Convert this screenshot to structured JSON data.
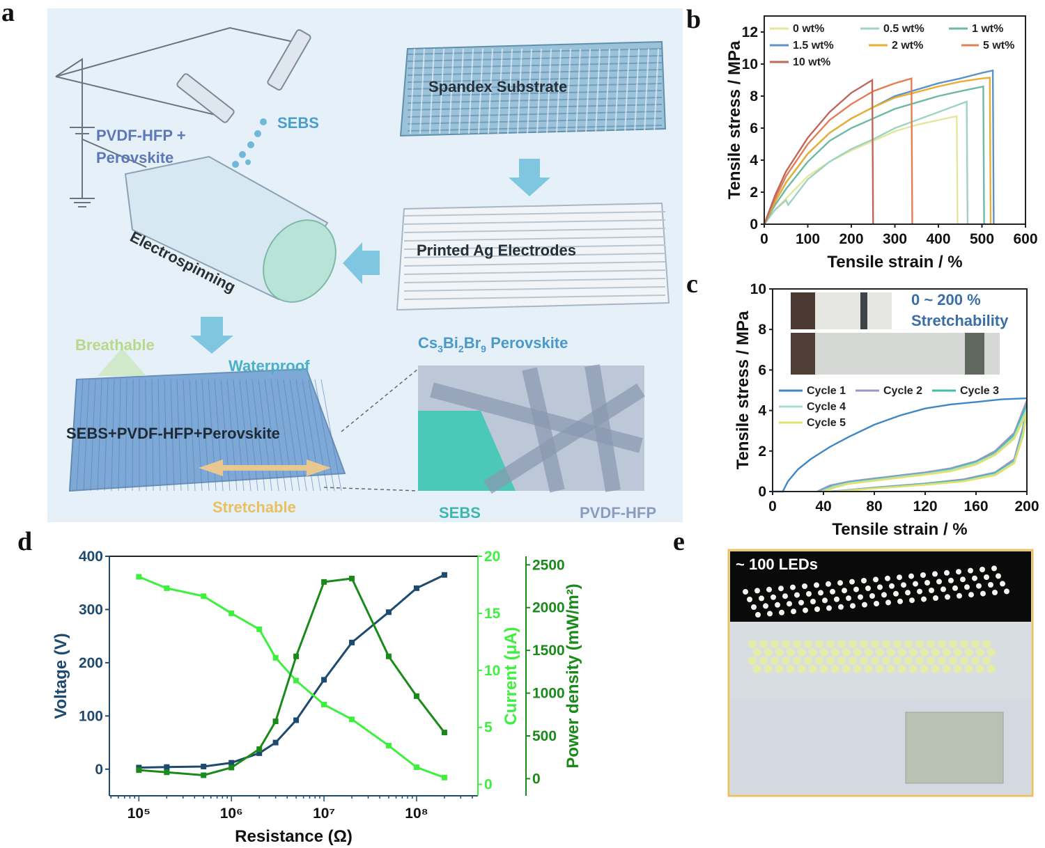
{
  "panel_labels": {
    "a": "a",
    "b": "b",
    "c": "c",
    "d": "d",
    "e": "e"
  },
  "panel_a": {
    "spandex": "Spandex Substrate",
    "electrodes": "Printed Ag Electrodes",
    "electrospinning": "Electrospinning",
    "sebs_top": "SEBS",
    "pvdf_perov_1": "PVDF-HFP +",
    "pvdf_perov_2": "Perovskite",
    "breathable": "Breathable",
    "waterproof": "Waterproof",
    "composite": "SEBS+PVDF-HFP+Perovskite",
    "stretchable": "Stretchable",
    "perovskite_main": "Cs",
    "perovskite_sub1": "3",
    "perovskite_mid1": "Bi",
    "perovskite_sub2": "2",
    "perovskite_mid2": "Br",
    "perovskite_sub3": "9",
    "perovskite_tail": " Perovskite",
    "sebs_inset": "SEBS",
    "pvdf_inset": "PVDF-HFP",
    "colors": {
      "bg": "#e6f0f8",
      "fabric": "#8fb8d4",
      "membrane": "#6f9fd0",
      "teal": "#3fb6b0",
      "accent": "#4aa0c8"
    }
  },
  "panel_e": {
    "caption": "~ 100 LEDs"
  },
  "chart_data": [
    {
      "panel": "b",
      "type": "line",
      "xlabel": "Tensile strain / %",
      "ylabel": "Tensile stress / MPa",
      "xlim": [
        0,
        600
      ],
      "ylim": [
        0,
        13
      ],
      "xticks": [
        0,
        100,
        200,
        300,
        400,
        500,
        600
      ],
      "yticks": [
        0,
        2,
        4,
        6,
        8,
        10,
        12
      ],
      "grid": false,
      "legend": "top",
      "series": [
        {
          "name": "0 wt%",
          "color": "#e4e69a",
          "points": [
            [
              0,
              0
            ],
            [
              25,
              0.9
            ],
            [
              50,
              1.6
            ],
            [
              100,
              3.0
            ],
            [
              150,
              3.9
            ],
            [
              200,
              4.6
            ],
            [
              250,
              5.2
            ],
            [
              300,
              5.8
            ],
            [
              350,
              6.2
            ],
            [
              400,
              6.5
            ],
            [
              442,
              6.75
            ],
            [
              444,
              0
            ]
          ]
        },
        {
          "name": "0.5 wt%",
          "color": "#9fd3c2",
          "points": [
            [
              0,
              0
            ],
            [
              25,
              0.9
            ],
            [
              50,
              1.5
            ],
            [
              55,
              1.2
            ],
            [
              100,
              2.8
            ],
            [
              150,
              3.9
            ],
            [
              200,
              4.7
            ],
            [
              250,
              5.3
            ],
            [
              300,
              6.0
            ],
            [
              350,
              6.5
            ],
            [
              400,
              7.0
            ],
            [
              465,
              7.65
            ],
            [
              467,
              0
            ]
          ]
        },
        {
          "name": "1 wt%",
          "color": "#6db8a6",
          "points": [
            [
              0,
              0
            ],
            [
              25,
              1.2
            ],
            [
              50,
              2.2
            ],
            [
              100,
              3.9
            ],
            [
              150,
              5.2
            ],
            [
              200,
              6.0
            ],
            [
              250,
              6.6
            ],
            [
              300,
              7.2
            ],
            [
              350,
              7.6
            ],
            [
              400,
              8.0
            ],
            [
              450,
              8.3
            ],
            [
              503,
              8.6
            ],
            [
              505,
              0
            ]
          ]
        },
        {
          "name": "1.5 wt%",
          "color": "#5d92c8",
          "points": [
            [
              0,
              0
            ],
            [
              25,
              1.4
            ],
            [
              50,
              2.6
            ],
            [
              100,
              4.4
            ],
            [
              150,
              5.7
            ],
            [
              200,
              6.6
            ],
            [
              250,
              7.3
            ],
            [
              300,
              8.0
            ],
            [
              350,
              8.4
            ],
            [
              400,
              8.8
            ],
            [
              450,
              9.1
            ],
            [
              500,
              9.45
            ],
            [
              525,
              9.6
            ],
            [
              527,
              0
            ]
          ]
        },
        {
          "name": "2 wt%",
          "color": "#e8b032",
          "points": [
            [
              0,
              0
            ],
            [
              25,
              1.4
            ],
            [
              50,
              2.6
            ],
            [
              100,
              4.4
            ],
            [
              150,
              5.7
            ],
            [
              200,
              6.6
            ],
            [
              250,
              7.3
            ],
            [
              300,
              7.9
            ],
            [
              350,
              8.25
            ],
            [
              400,
              8.6
            ],
            [
              450,
              8.9
            ],
            [
              500,
              9.1
            ],
            [
              518,
              9.15
            ],
            [
              520,
              0
            ]
          ]
        },
        {
          "name": "5 wt%",
          "color": "#e27d55",
          "points": [
            [
              0,
              0
            ],
            [
              25,
              1.6
            ],
            [
              50,
              3.0
            ],
            [
              100,
              5.0
            ],
            [
              150,
              6.5
            ],
            [
              200,
              7.5
            ],
            [
              250,
              8.3
            ],
            [
              300,
              8.8
            ],
            [
              338,
              9.1
            ],
            [
              340,
              0
            ]
          ]
        },
        {
          "name": "10 wt%",
          "color": "#c0675c",
          "points": [
            [
              0,
              0
            ],
            [
              25,
              1.8
            ],
            [
              50,
              3.3
            ],
            [
              100,
              5.4
            ],
            [
              150,
              7.0
            ],
            [
              200,
              8.2
            ],
            [
              230,
              8.7
            ],
            [
              248,
              9.0
            ],
            [
              250,
              0
            ]
          ]
        }
      ]
    },
    {
      "panel": "c",
      "type": "line",
      "xlabel": "Tensile strain / %",
      "ylabel": "Tensile stress / MPa",
      "xlim": [
        0,
        200
      ],
      "ylim": [
        0,
        10
      ],
      "xticks": [
        0,
        40,
        80,
        120,
        160,
        200
      ],
      "yticks": [
        0,
        2,
        4,
        6,
        8,
        10
      ],
      "grid": false,
      "legend": "center",
      "annotation": [
        "0 ~ 200 %",
        "Stretchability"
      ],
      "annotation_color": "#3a6ea5",
      "series": [
        {
          "name": "Cycle 1",
          "color": "#3f86c4",
          "points": [
            [
              0,
              0
            ],
            [
              8,
              0
            ],
            [
              12,
              0.5
            ],
            [
              20,
              1.1
            ],
            [
              30,
              1.6
            ],
            [
              45,
              2.2
            ],
            [
              60,
              2.7
            ],
            [
              80,
              3.3
            ],
            [
              100,
              3.75
            ],
            [
              120,
              4.1
            ],
            [
              140,
              4.3
            ],
            [
              160,
              4.42
            ],
            [
              180,
              4.55
            ],
            [
              200,
              4.6
            ]
          ]
        },
        {
          "name": "Cycle 2",
          "color": "#a392c4",
          "points": [
            [
              35,
              0
            ],
            [
              45,
              0.3
            ],
            [
              60,
              0.5
            ],
            [
              80,
              0.65
            ],
            [
              100,
              0.8
            ],
            [
              120,
              0.95
            ],
            [
              140,
              1.15
            ],
            [
              160,
              1.5
            ],
            [
              175,
              2.0
            ],
            [
              190,
              2.9
            ],
            [
              200,
              4.5
            ],
            [
              197,
              3.2
            ],
            [
              190,
              1.6
            ],
            [
              175,
              0.95
            ],
            [
              150,
              0.6
            ],
            [
              120,
              0.4
            ],
            [
              80,
              0.2
            ],
            [
              55,
              0.05
            ],
            [
              45,
              0
            ]
          ]
        },
        {
          "name": "Cycle 3",
          "color": "#3fc0a6",
          "points": [
            [
              37,
              0
            ],
            [
              47,
              0.28
            ],
            [
              60,
              0.45
            ],
            [
              80,
              0.6
            ],
            [
              100,
              0.75
            ],
            [
              120,
              0.9
            ],
            [
              140,
              1.1
            ],
            [
              160,
              1.45
            ],
            [
              175,
              1.9
            ],
            [
              190,
              2.8
            ],
            [
              200,
              4.3
            ],
            [
              197,
              3.0
            ],
            [
              190,
              1.5
            ],
            [
              175,
              0.9
            ],
            [
              150,
              0.55
            ],
            [
              120,
              0.38
            ],
            [
              80,
              0.18
            ],
            [
              55,
              0.04
            ],
            [
              47,
              0
            ]
          ]
        },
        {
          "name": "Cycle 4",
          "color": "#a9dccf",
          "points": [
            [
              38,
              0
            ],
            [
              48,
              0.25
            ],
            [
              60,
              0.42
            ],
            [
              80,
              0.57
            ],
            [
              100,
              0.72
            ],
            [
              120,
              0.87
            ],
            [
              140,
              1.05
            ],
            [
              160,
              1.4
            ],
            [
              175,
              1.85
            ],
            [
              190,
              2.7
            ],
            [
              200,
              4.1
            ],
            [
              197,
              2.9
            ],
            [
              190,
              1.45
            ],
            [
              175,
              0.85
            ],
            [
              150,
              0.52
            ],
            [
              120,
              0.35
            ],
            [
              80,
              0.16
            ],
            [
              55,
              0.03
            ],
            [
              48,
              0
            ]
          ]
        },
        {
          "name": "Cycle 5",
          "color": "#e4e06a",
          "points": [
            [
              40,
              0
            ],
            [
              50,
              0.22
            ],
            [
              60,
              0.38
            ],
            [
              80,
              0.53
            ],
            [
              100,
              0.68
            ],
            [
              120,
              0.83
            ],
            [
              140,
              1.0
            ],
            [
              160,
              1.33
            ],
            [
              175,
              1.8
            ],
            [
              190,
              2.6
            ],
            [
              200,
              3.9
            ],
            [
              197,
              2.7
            ],
            [
              190,
              1.4
            ],
            [
              175,
              0.8
            ],
            [
              150,
              0.5
            ],
            [
              120,
              0.33
            ],
            [
              80,
              0.15
            ],
            [
              55,
              0.02
            ],
            [
              50,
              0
            ]
          ]
        }
      ]
    },
    {
      "panel": "d",
      "type": "line",
      "xlabel": "Resistance (Ω)",
      "xscale": "log",
      "xlim": [
        48000,
        460000000
      ],
      "xticks": [
        100000,
        1000000,
        10000000,
        100000000
      ],
      "xticklabels": [
        "10⁵",
        "10⁶",
        "10⁷",
        "10⁸"
      ],
      "x": [
        100000,
        200000,
        500000,
        1000000,
        2000000,
        3000000,
        5000000,
        10000000,
        20000000,
        50000000,
        100000000,
        200000000
      ],
      "grid": false,
      "axes": [
        {
          "ylabel": "Voltage (V)",
          "ylim": [
            -50,
            400
          ],
          "yticks": [
            0,
            100,
            200,
            300,
            400
          ],
          "color": "#1d4a6e",
          "side": "left"
        },
        {
          "ylabel": "Current (μA)",
          "ylim": [
            -1,
            20
          ],
          "yticks": [
            0,
            5,
            10,
            15,
            20
          ],
          "color": "#3ef03e",
          "side": "right"
        },
        {
          "ylabel": "Power density (mW/m²)",
          "ylim": [
            -200,
            2600
          ],
          "yticks": [
            0,
            500,
            1000,
            1500,
            2000,
            2500
          ],
          "color": "#1a8a1a",
          "side": "right-offset"
        }
      ],
      "series": [
        {
          "axis": 0,
          "color": "#1d4a6e",
          "values": [
            3,
            4,
            5,
            12,
            30,
            50,
            92,
            168,
            238,
            295,
            340,
            365
          ]
        },
        {
          "axis": 1,
          "color": "#3ef03e",
          "values": [
            18.2,
            17.2,
            16.5,
            15.0,
            13.6,
            11.1,
            9.1,
            7.0,
            5.7,
            3.4,
            1.5,
            0.6
          ]
        },
        {
          "axis": 2,
          "color": "#1a8a1a",
          "values": [
            100,
            75,
            40,
            130,
            345,
            670,
            1430,
            2300,
            2340,
            1430,
            965,
            540
          ]
        }
      ]
    }
  ]
}
